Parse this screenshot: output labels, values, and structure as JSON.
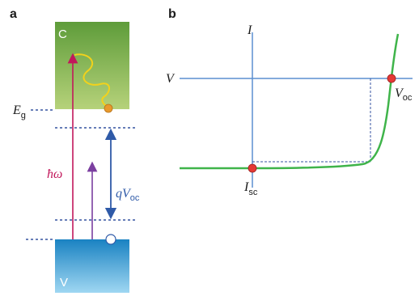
{
  "panel_a": {
    "label": "a",
    "conduction_band_label": "C",
    "valence_band_label": "V",
    "bandgap_label": {
      "main": "E",
      "sub": "g"
    },
    "photon_label": "ħω",
    "qvoc_label": {
      "main": "qV",
      "sub": "oc"
    }
  },
  "panel_b": {
    "label": "b",
    "current_axis_label": "I",
    "voltage_axis_label": "V",
    "voc_label": {
      "main": "V",
      "sub": "oc"
    },
    "isc_label": {
      "main": "I",
      "sub": "sc"
    }
  },
  "colors": {
    "band_green_top": "#5e9c3a",
    "band_green_bottom": "#b6d27a",
    "band_blue_top": "#1a82c2",
    "band_blue_bottom": "#9fd7f2",
    "dashed_line": "#3553a0",
    "photon_arrow": "#c2185b",
    "purple_arrow": "#7b3fa0",
    "qvoc_arrow": "#2f5aa8",
    "relaxation_wave": "#f2d21b",
    "electron": "#e89a2c",
    "axis": "#5b8fd0",
    "iv_curve": "#3fb44a",
    "marker": "#e53935"
  }
}
